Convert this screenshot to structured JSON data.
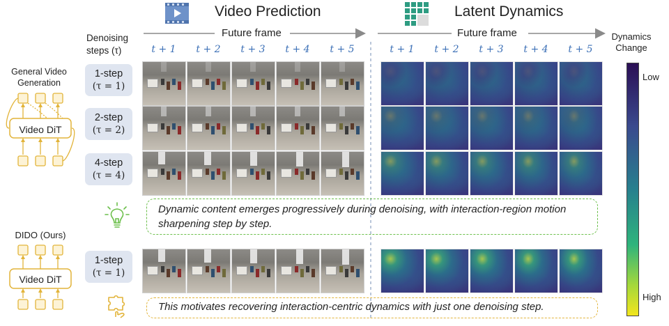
{
  "header": {
    "video_title": "Video Prediction",
    "latent_title": "Latent Dynamics",
    "denoising_label_line1": "Denoising",
    "denoising_label_line2": "steps (τ)",
    "future_frame_left": "Future frame",
    "future_frame_right": "Future frame",
    "dynamics_change_line1": "Dynamics",
    "dynamics_change_line2": "Change",
    "time_labels": [
      "t + 1",
      "t + 2",
      "t + 3",
      "t + 4",
      "t + 5"
    ]
  },
  "left_panel": {
    "general_title_line1": "General Video",
    "general_title_line2": "Generation",
    "general_model": "Video DiT",
    "dido_title": "DIDO (Ours)",
    "dido_model": "Video DiT"
  },
  "rows": [
    {
      "step": "1-step",
      "tau": "(τ = 1)"
    },
    {
      "step": "2-step",
      "tau": "(τ = 2)"
    },
    {
      "step": "4-step",
      "tau": "(τ = 4)"
    },
    {
      "step": "1-step",
      "tau": "(τ = 1)"
    }
  ],
  "notes": {
    "observation": "Dynamic content emerges progressively during denoising, with interaction-region motion sharpening step by step.",
    "motivation": "This motivates recovering interaction-centric dynamics with just one denoising step."
  },
  "colorbar": {
    "low": "Low",
    "high": "High",
    "colors": [
      "#3b0f70",
      "#31688e",
      "#35b779",
      "#fde725"
    ]
  },
  "icons": {
    "video": "film-play-icon",
    "latent": "grid-icon",
    "lightbulb": "lightbulb-icon",
    "puzzle": "puzzle-hand-icon"
  },
  "accent_colors": {
    "diagram_yellow": "#e2b43a",
    "note_green": "#6cbf4b",
    "note_yellow": "#e2b43a",
    "time_blue": "#3b6fb6"
  }
}
